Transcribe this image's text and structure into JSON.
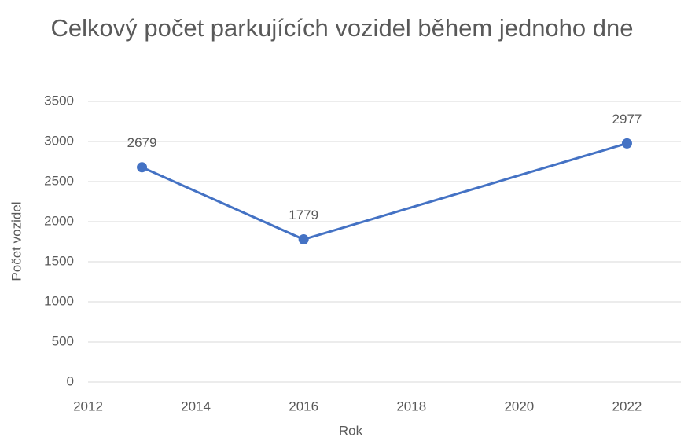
{
  "chart_data": {
    "type": "line",
    "title": "Celkový počet parkujících vozidel během jednoho dne",
    "x_label": "Rok",
    "y_label": "Počet vozidel",
    "x": [
      2013,
      2016,
      2022
    ],
    "series": [
      {
        "name": "Počet vozidel",
        "color": "#4472c4",
        "values": [
          2679,
          1779,
          2977
        ]
      }
    ],
    "xlim": [
      2012,
      2023
    ],
    "xticks": [
      2012,
      2014,
      2016,
      2018,
      2020,
      2022
    ],
    "ylim": [
      0,
      3500
    ],
    "yticks": [
      0,
      500,
      1000,
      1500,
      2000,
      2500,
      3000,
      3500
    ],
    "grid": true,
    "legend": false
  }
}
